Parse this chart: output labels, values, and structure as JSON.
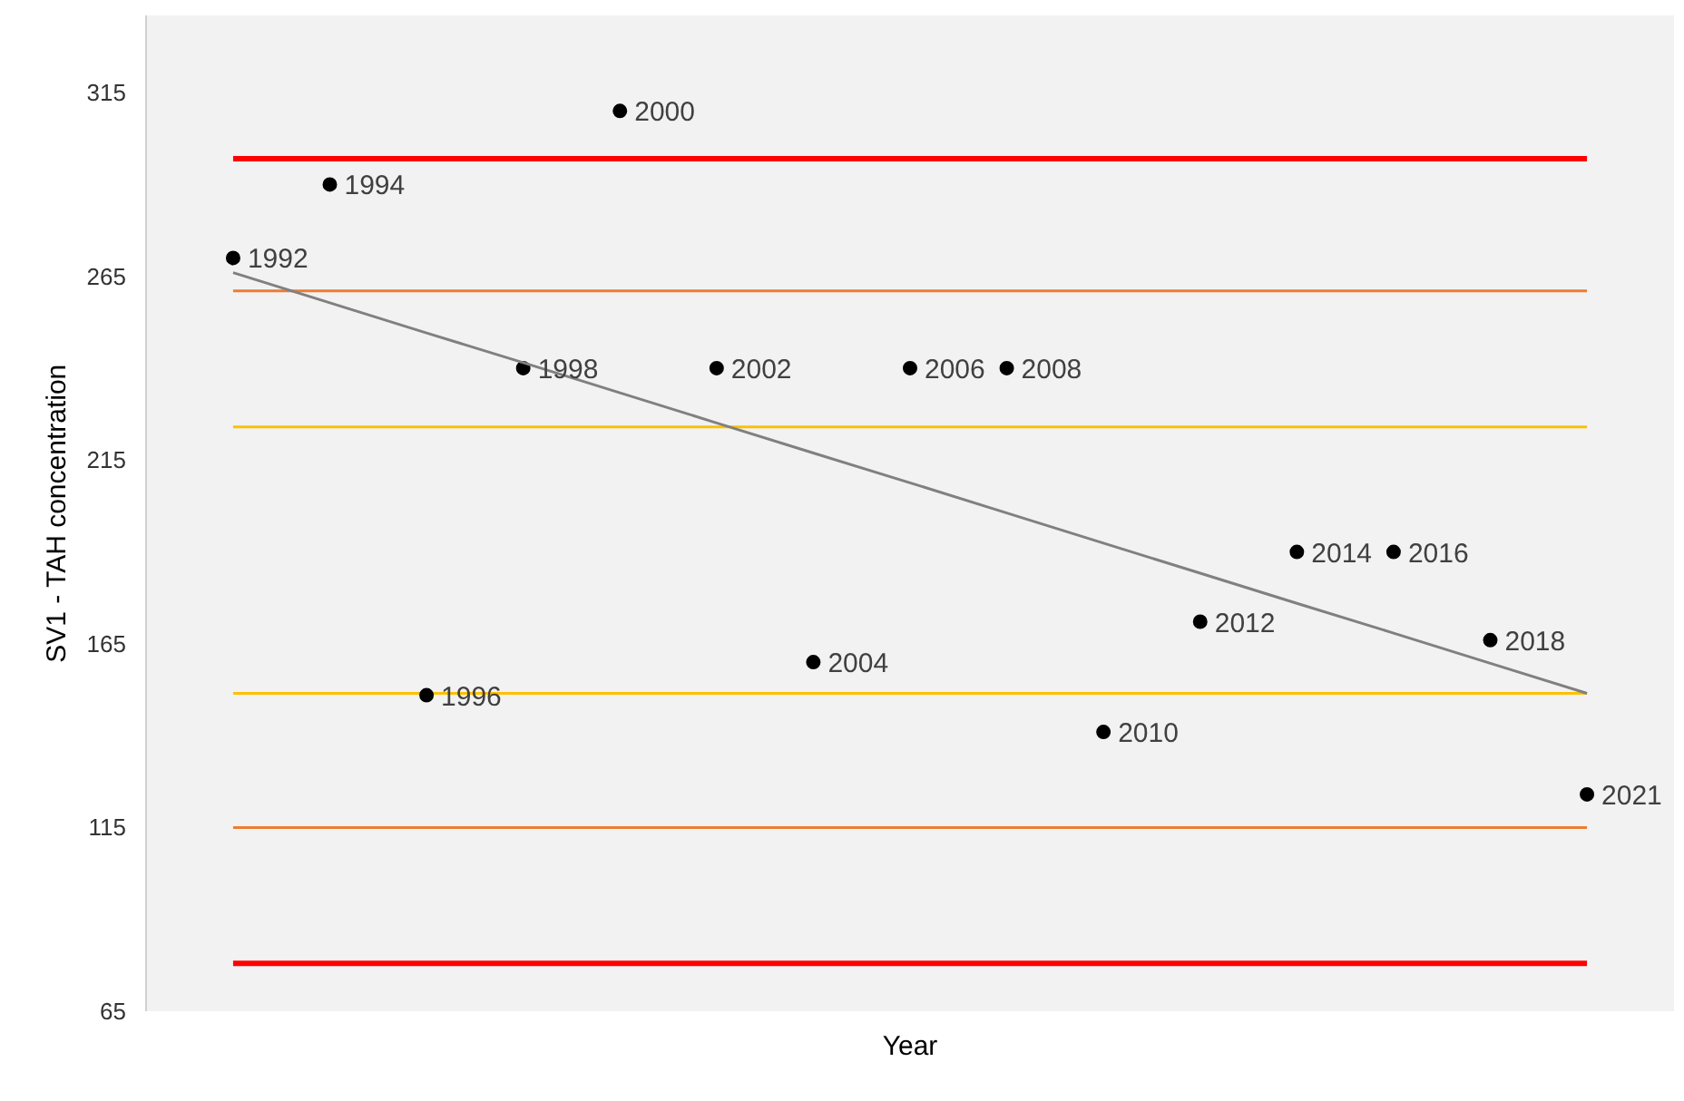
{
  "chart_data": {
    "type": "scatter",
    "xlabel": "Year",
    "ylabel": "SV1 - TAH concentration",
    "categories": [
      null,
      null,
      null,
      null,
      null,
      null,
      null,
      null,
      null,
      null,
      null,
      null,
      null,
      null,
      null
    ],
    "annotations": [
      "1992",
      "1994",
      "1996",
      "1998",
      "2000",
      "2002",
      "2004",
      "2006",
      "2008",
      "2010",
      "2012",
      "2014",
      "2016",
      "2018",
      "2021"
    ],
    "series": [
      {
        "color": "#000000",
        "marker": "circle",
        "values": [
          270,
          290,
          151,
          240,
          310,
          240,
          160,
          240,
          240,
          141,
          171,
          190,
          190,
          166,
          124
        ]
      },
      {
        "type": "line",
        "color": "#808080",
        "marker": "none",
        "values": [
          266,
          257.8,
          249.6,
          241.5,
          233.3,
          225.1,
          216.9,
          208.8,
          200.6,
          192.4,
          184.2,
          176.0,
          167.9,
          159.7,
          151.5
        ]
      }
    ],
    "ylim": [
      65,
      336
    ],
    "yticks": [
      65,
      115,
      165,
      215,
      265,
      315
    ],
    "ref_lines": [
      {
        "axis": "y",
        "value": 297,
        "color": "#ff0000"
      },
      {
        "axis": "y",
        "value": 261,
        "color": "#ed7d31"
      },
      {
        "axis": "y",
        "value": 224,
        "color": "#ffc000"
      },
      {
        "axis": "y",
        "value": 151.5,
        "color": "#ffc000"
      },
      {
        "axis": "y",
        "value": 115,
        "color": "#ed7d31"
      },
      {
        "axis": "y",
        "value": 78,
        "color": "#ff0000"
      }
    ],
    "tick_labels": "y",
    "grid": false
  }
}
